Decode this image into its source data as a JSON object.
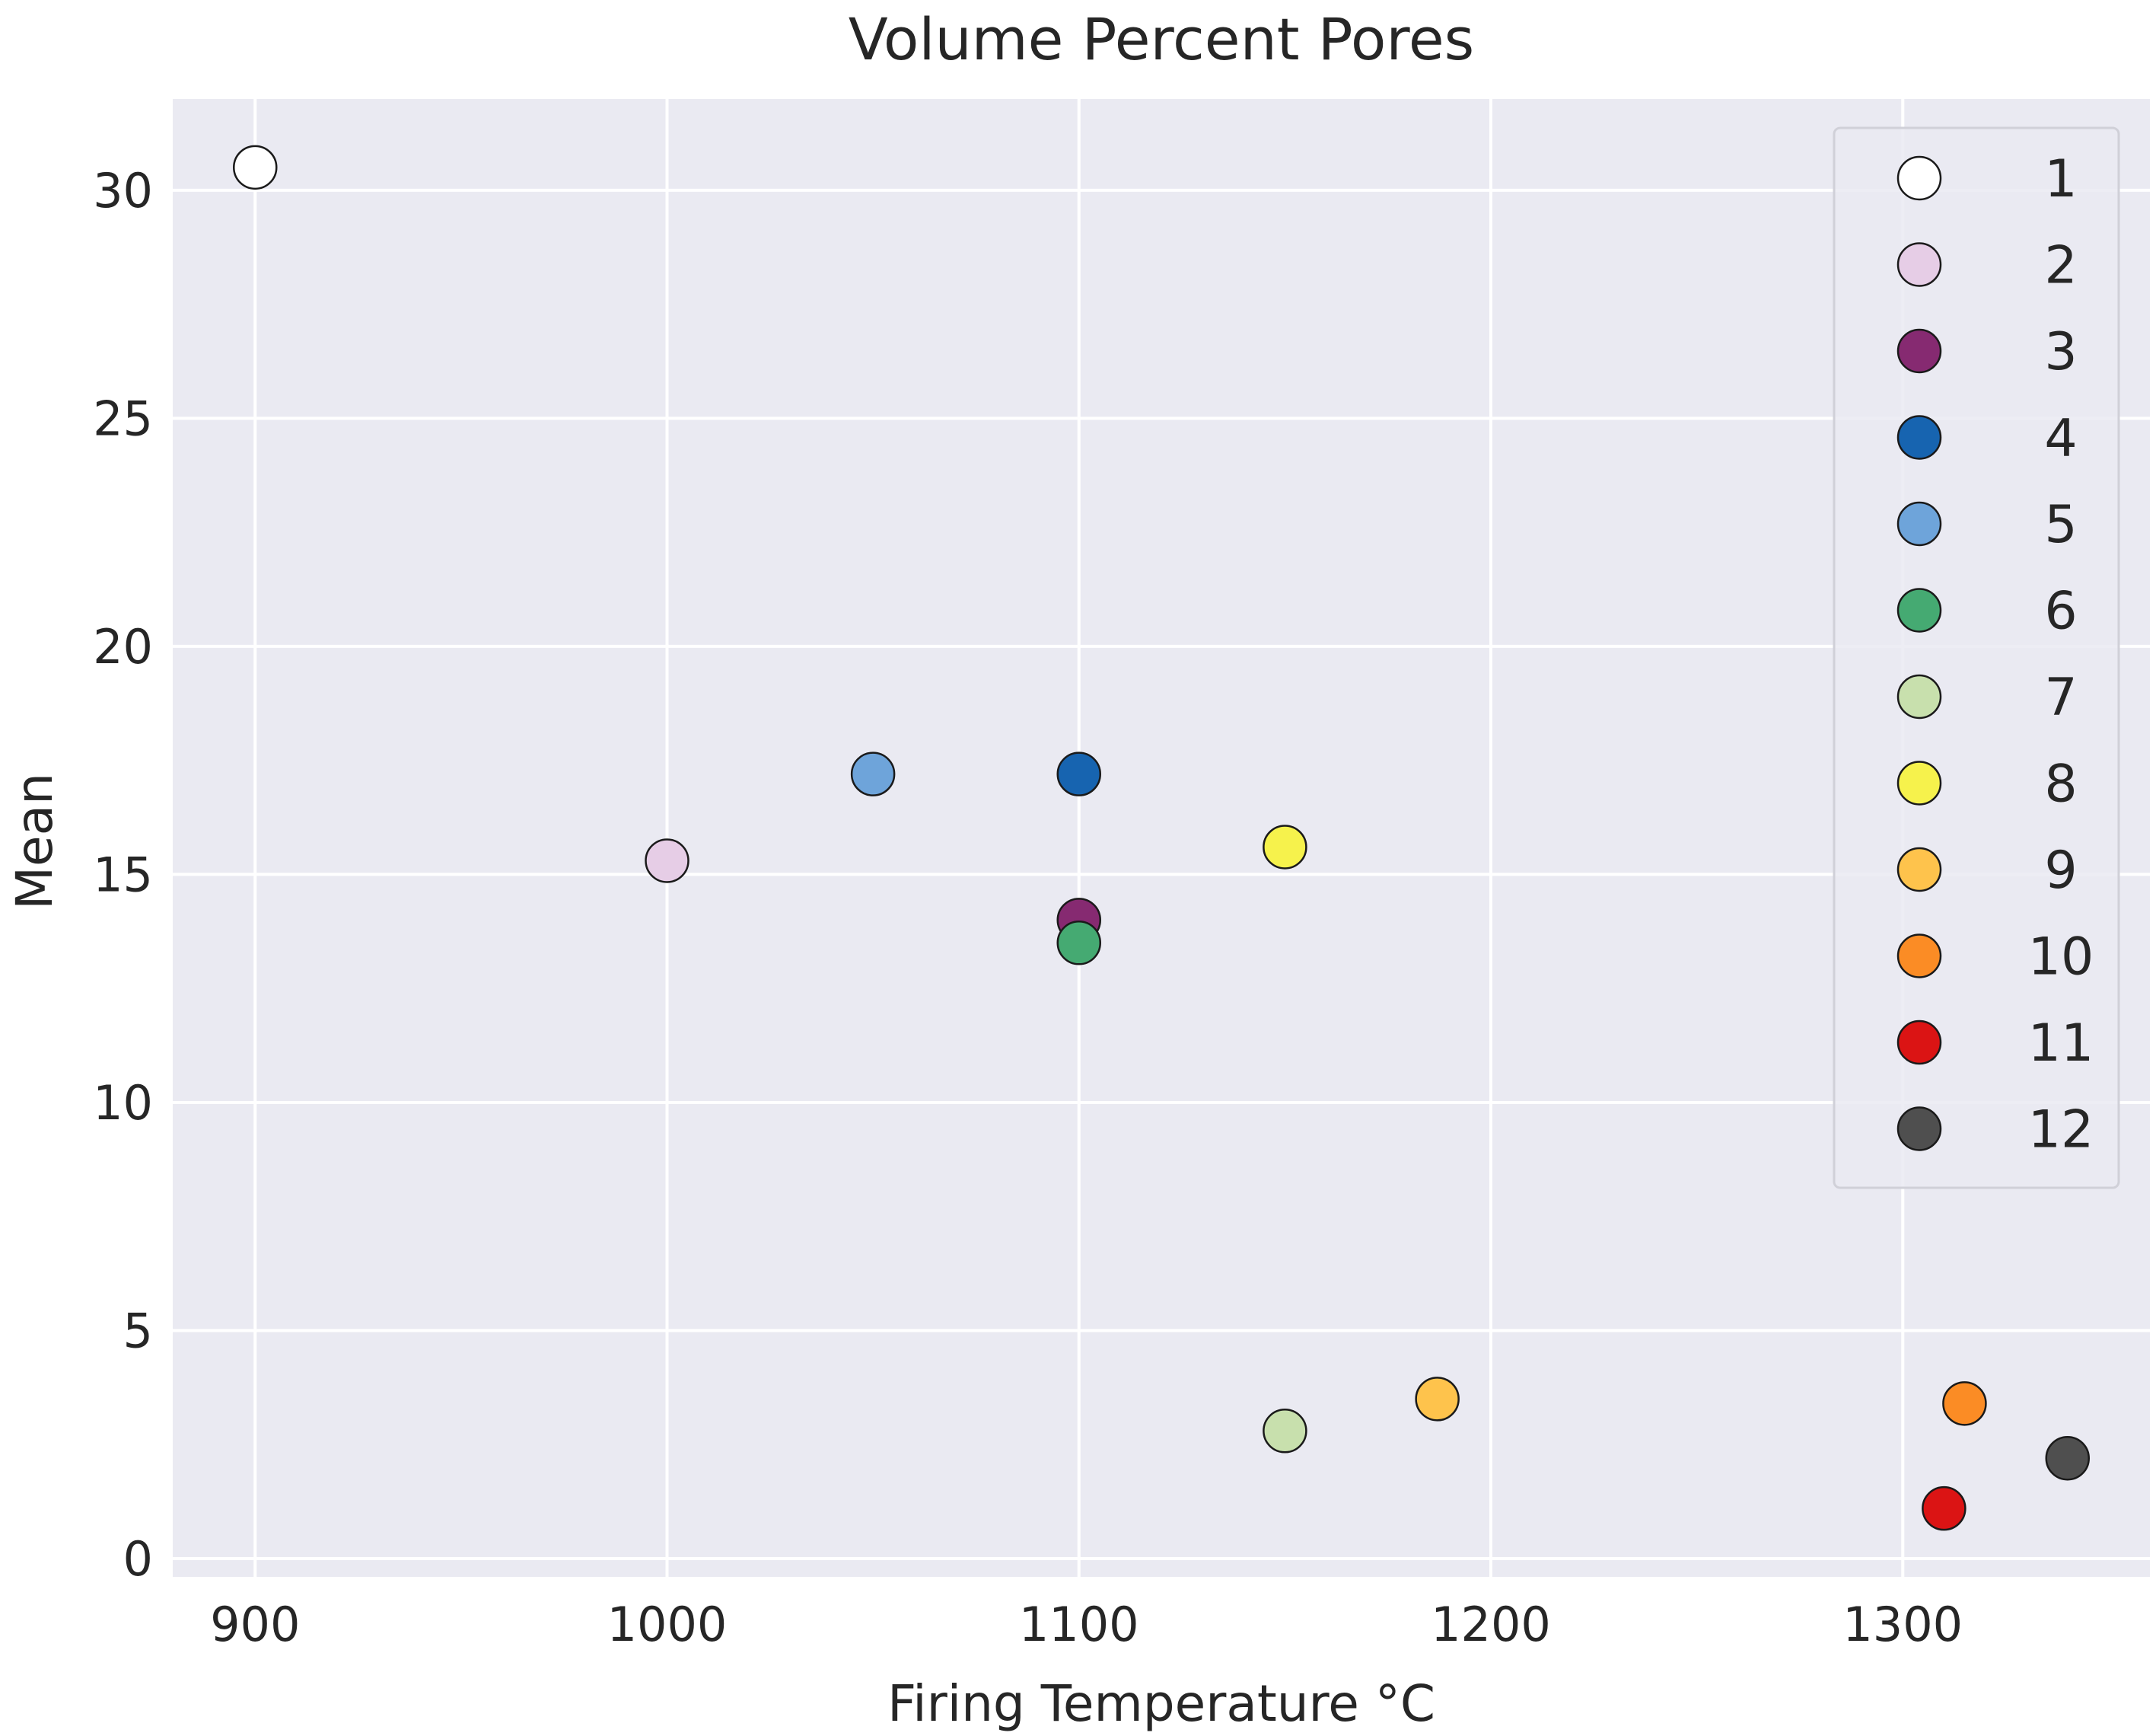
{
  "chart_data": {
    "type": "scatter",
    "title": "Volume Percent Pores",
    "xlabel": "Firing Temperature °C",
    "ylabel": "Mean",
    "xlim": [
      880,
      1360
    ],
    "ylim": [
      -0.4,
      32
    ],
    "xticks": [
      900,
      1000,
      1100,
      1200,
      1300
    ],
    "yticks": [
      0,
      5,
      10,
      15,
      20,
      25,
      30
    ],
    "grid": true,
    "legend_position": "top-right",
    "points": [
      {
        "label": "1",
        "x": 900,
        "y": 30.5,
        "color": "#ffffff"
      },
      {
        "label": "2",
        "x": 1000,
        "y": 15.3,
        "color": "#e6cde6"
      },
      {
        "label": "3",
        "x": 1100,
        "y": 14.0,
        "color": "#862a71"
      },
      {
        "label": "4",
        "x": 1100,
        "y": 17.2,
        "color": "#1764b0"
      },
      {
        "label": "5",
        "x": 1050,
        "y": 17.2,
        "color": "#6ea4da"
      },
      {
        "label": "6",
        "x": 1100,
        "y": 13.5,
        "color": "#45aa72"
      },
      {
        "label": "7",
        "x": 1150,
        "y": 2.8,
        "color": "#c8e0ad"
      },
      {
        "label": "8",
        "x": 1150,
        "y": 15.6,
        "color": "#f6f24c"
      },
      {
        "label": "9",
        "x": 1187,
        "y": 3.5,
        "color": "#fec34c"
      },
      {
        "label": "10",
        "x": 1315,
        "y": 3.4,
        "color": "#fb8c25"
      },
      {
        "label": "11",
        "x": 1310,
        "y": 1.1,
        "color": "#db1414"
      },
      {
        "label": "12",
        "x": 1340,
        "y": 2.2,
        "color": "#4f4f4f"
      }
    ]
  }
}
